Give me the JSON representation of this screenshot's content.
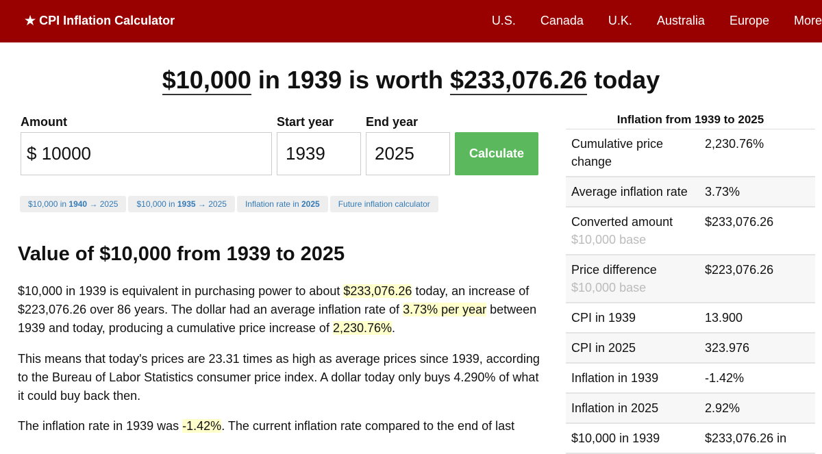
{
  "nav": {
    "brand": "★ CPI Inflation Calculator",
    "links": [
      "U.S.",
      "Canada",
      "U.K.",
      "Australia",
      "Europe",
      "More"
    ]
  },
  "headline": {
    "amount": "$10,000",
    "mid": " in 1939 is worth ",
    "value": "$233,076.26",
    "end": " today"
  },
  "form": {
    "amount_label": "Amount",
    "currency": "$",
    "amount": "10000",
    "start_label": "Start year",
    "start": "1939",
    "end_label": "End year",
    "end": "2025",
    "calculate": "Calculate"
  },
  "chips": [
    {
      "pre": "$10,000 in ",
      "bold": "1940",
      "post": " → 2025"
    },
    {
      "pre": "$10,000 in ",
      "bold": "1935",
      "post": " → 2025"
    },
    {
      "pre": "Inflation rate in ",
      "bold": "2025",
      "post": ""
    },
    {
      "pre": "Future inflation calculator",
      "bold": "",
      "post": ""
    }
  ],
  "article": {
    "heading": "Value of $10,000 from 1939 to 2025",
    "p1": [
      "$10,000 in 1939 is equivalent in purchasing power to about ",
      "$233,076.26",
      " today, an increase of $223,076.26 over 86 years. The dollar had an average inflation rate of ",
      "3.73% per year",
      " between 1939 and today, producing a cumulative price increase of ",
      "2,230.76%",
      "."
    ],
    "p2": "This means that today's prices are 23.31 times as high as average prices since 1939, according to the Bureau of Labor Statistics consumer price index. A dollar today only buys 4.290% of what it could buy back then.",
    "p3": [
      "The inflation rate in 1939 was ",
      "-1.42%",
      ". The current inflation rate compared to the end of last"
    ]
  },
  "sidebar": {
    "title": "Inflation from 1939 to 2025",
    "rows": [
      {
        "k": "Cumulative price change",
        "v": "2,230.76%"
      },
      {
        "k": "Average inflation rate",
        "v": "3.73%"
      },
      {
        "k": "Converted amount",
        "sub": "$10,000 base",
        "v": "$233,076.26"
      },
      {
        "k": "Price difference",
        "sub": "$10,000 base",
        "v": "$223,076.26"
      },
      {
        "k": "CPI in 1939",
        "v": "13.900"
      },
      {
        "k": "CPI in 2025",
        "v": "323.976"
      },
      {
        "k": "Inflation in 1939",
        "v": "-1.42%"
      },
      {
        "k": "Inflation in 2025",
        "v": "2.92%"
      },
      {
        "k": "$10,000 in 1939",
        "v": "$233,076.26 in"
      }
    ]
  }
}
